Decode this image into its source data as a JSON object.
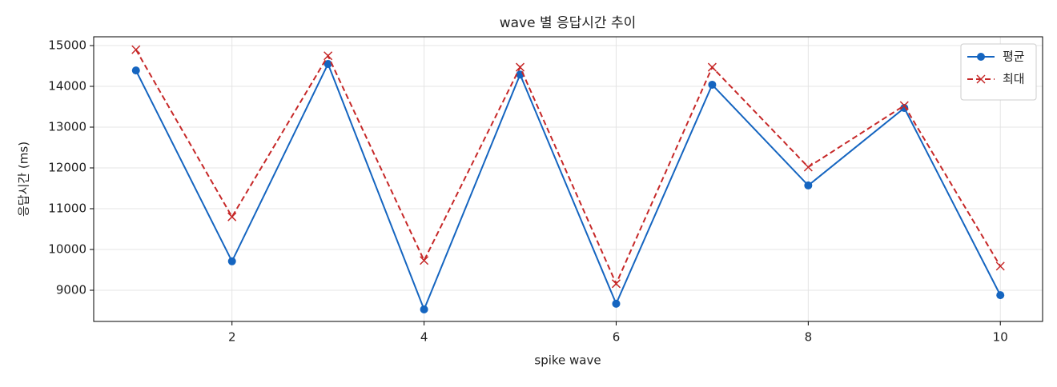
{
  "chart_data": {
    "type": "line",
    "title": "wave 별 응답시간 추이",
    "x_label": "spike wave",
    "y_label": "응답시간 (ms)",
    "x": [
      1,
      2,
      3,
      4,
      5,
      6,
      7,
      8,
      9,
      10
    ],
    "series": [
      {
        "name": "평균",
        "color": "#1565c0",
        "marker": "circle",
        "dash": "solid",
        "values": [
          14390,
          9710,
          14550,
          8530,
          14290,
          8670,
          14040,
          11570,
          13470,
          8880
        ]
      },
      {
        "name": "최대",
        "color": "#c62828",
        "marker": "x",
        "dash": "dashed",
        "values": [
          14900,
          10800,
          14750,
          9730,
          14470,
          9160,
          14470,
          12020,
          13530,
          9590
        ]
      }
    ],
    "xlim": [
      0.56,
      10.44
    ],
    "ylim": [
      8235,
      15216
    ],
    "xticks": [
      2,
      4,
      6,
      8,
      10
    ],
    "yticks": [
      9000,
      10000,
      11000,
      12000,
      13000,
      14000,
      15000
    ],
    "grid": true,
    "legend": "upper right"
  }
}
